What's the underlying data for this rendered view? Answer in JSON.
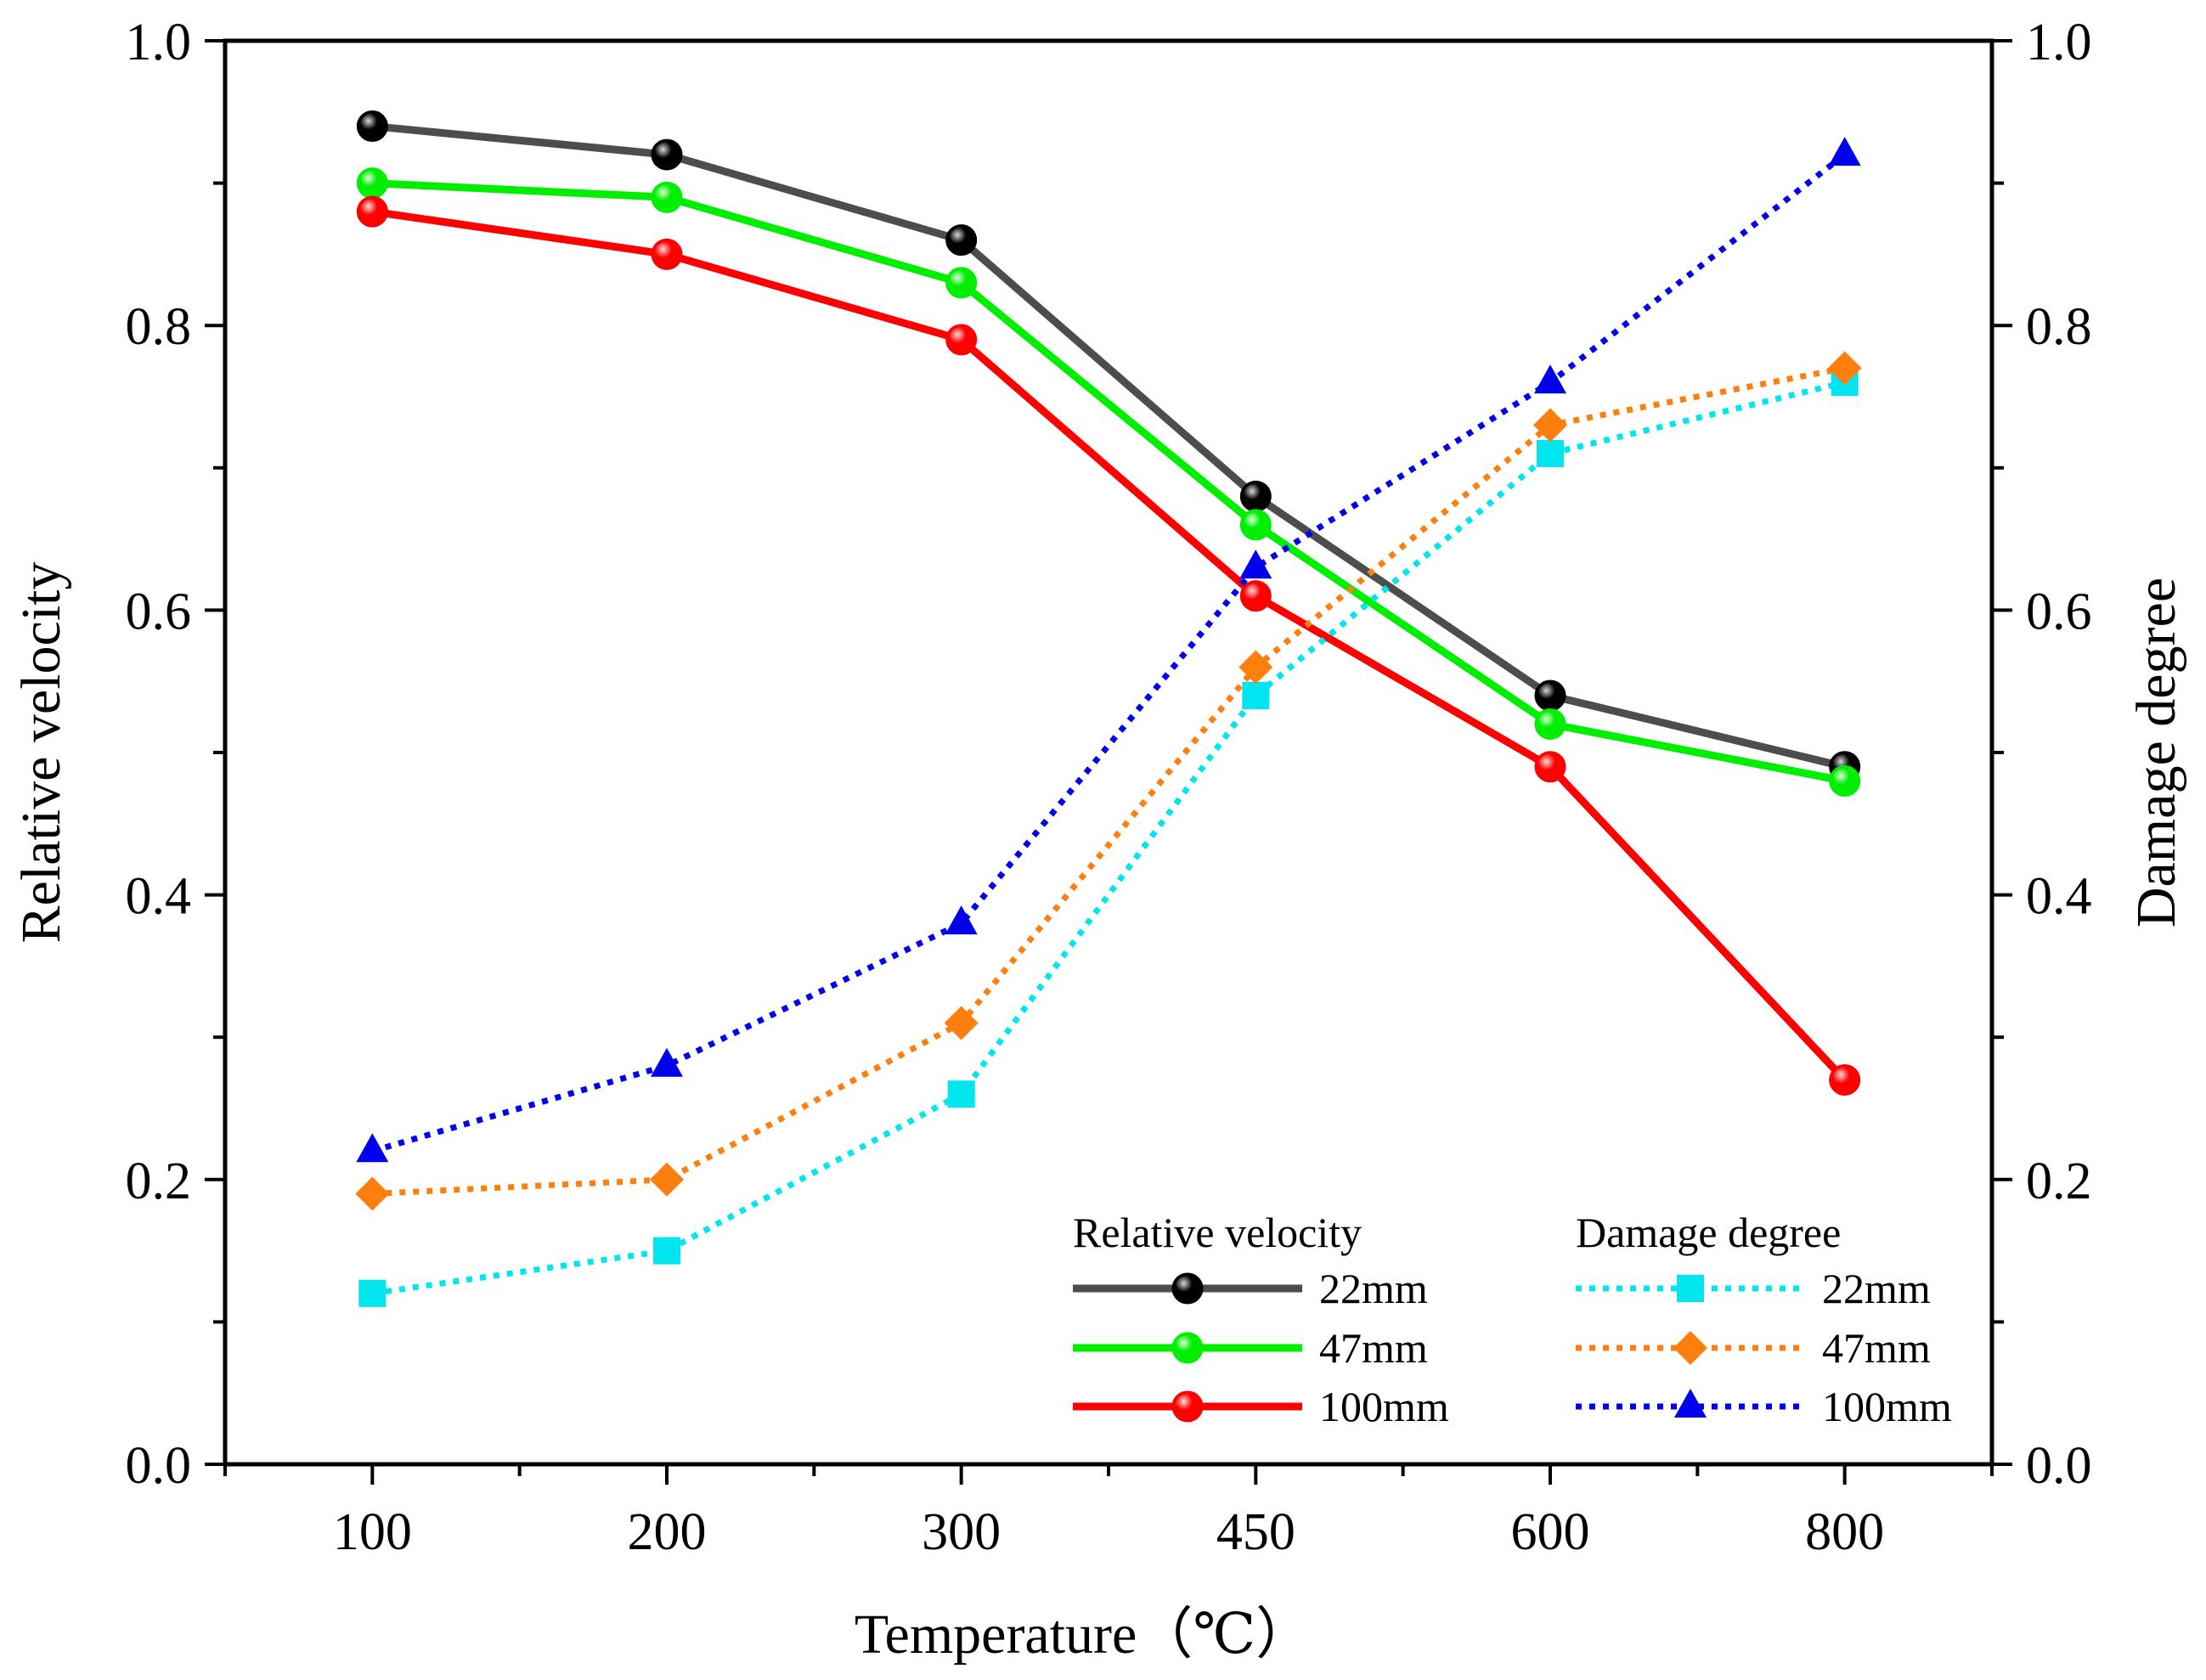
{
  "chart_data": {
    "type": "line",
    "xlabel": "Temperature（℃）",
    "ylabel": "Relative velocity",
    "y2label": "Damage degree",
    "categories": [
      "100",
      "200",
      "300",
      "450",
      "600",
      "800"
    ],
    "ylim": [
      0.0,
      1.0
    ],
    "y2lim": [
      0.0,
      1.0
    ],
    "yticks": [
      "0.0",
      "0.2",
      "0.4",
      "0.6",
      "0.8",
      "1.0"
    ],
    "y2ticks": [
      "0.0",
      "0.2",
      "0.4",
      "0.6",
      "0.8",
      "1.0"
    ],
    "legend": {
      "placement": "bottom-right",
      "group_left_title": "Relative velocity",
      "group_right_title": "Damage degree"
    },
    "series": [
      {
        "id": "rv22",
        "group": "Relative velocity",
        "name": "22mm",
        "axis": "left",
        "color": "#4d4d4d",
        "marker": "circle",
        "marker_fill": "#000000",
        "dash": "solid",
        "values": [
          0.94,
          0.92,
          0.86,
          0.68,
          0.54,
          0.49
        ]
      },
      {
        "id": "rv47",
        "group": "Relative velocity",
        "name": "47mm",
        "axis": "left",
        "color": "#00ee00",
        "marker": "circle",
        "marker_fill": "#00ee00",
        "dash": "solid",
        "values": [
          0.9,
          0.89,
          0.83,
          0.66,
          0.52,
          0.48
        ]
      },
      {
        "id": "rv100",
        "group": "Relative velocity",
        "name": "100mm",
        "axis": "left",
        "color": "#ff0000",
        "marker": "circle",
        "marker_fill": "#ff0000",
        "dash": "solid",
        "values": [
          0.88,
          0.85,
          0.79,
          0.61,
          0.49,
          0.27
        ]
      },
      {
        "id": "dd22",
        "group": "Damage degree",
        "name": "22mm",
        "axis": "right",
        "color": "#00e5ee",
        "marker": "square",
        "marker_fill": "#00e5ee",
        "dash": "dotted",
        "values": [
          0.12,
          0.15,
          0.26,
          0.54,
          0.71,
          0.76
        ]
      },
      {
        "id": "dd47",
        "group": "Damage degree",
        "name": "47mm",
        "axis": "right",
        "color": "#ff7f0e",
        "marker": "diamond",
        "marker_fill": "#ff7f0e",
        "dash": "dotted",
        "values": [
          0.19,
          0.2,
          0.31,
          0.56,
          0.73,
          0.77
        ]
      },
      {
        "id": "dd100",
        "group": "Damage degree",
        "name": "100mm",
        "axis": "right",
        "color": "#0000ee",
        "marker": "triangle",
        "marker_fill": "#0000ee",
        "dash": "dotted",
        "values": [
          0.22,
          0.28,
          0.38,
          0.63,
          0.76,
          0.92
        ]
      }
    ]
  }
}
